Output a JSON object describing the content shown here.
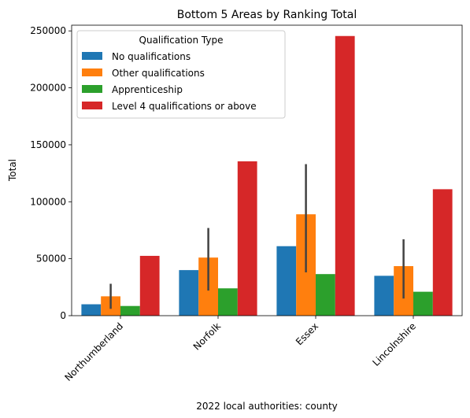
{
  "chart_data": {
    "type": "bar",
    "title": "Bottom 5 Areas by Ranking Total",
    "xlabel": "2022 local authorities: county",
    "ylabel": "Total",
    "ylim": [
      0,
      255000
    ],
    "yticks": [
      0,
      50000,
      100000,
      150000,
      200000,
      250000
    ],
    "grid": false,
    "categories": [
      "Northumberland",
      "Norfolk",
      "Essex",
      "Lincolnshire"
    ],
    "legend": {
      "title": "Qualification Type",
      "placement": "upper-left"
    },
    "series": [
      {
        "name": "No qualifications",
        "color": "#1f77b4",
        "values": [
          10000,
          40000,
          61000,
          35000
        ]
      },
      {
        "name": "Other qualifications",
        "color": "#ff7f0e",
        "values": [
          17000,
          51000,
          89000,
          43500
        ],
        "error_low": [
          6000,
          22000,
          38000,
          15000
        ],
        "error_high": [
          28000,
          77000,
          133000,
          67000
        ]
      },
      {
        "name": "Apprenticeship",
        "color": "#2ca02c",
        "values": [
          8500,
          24000,
          36500,
          21000
        ]
      },
      {
        "name": "Level 4 qualifications or above",
        "color": "#d62728",
        "values": [
          52500,
          135500,
          245500,
          111000
        ]
      }
    ]
  }
}
